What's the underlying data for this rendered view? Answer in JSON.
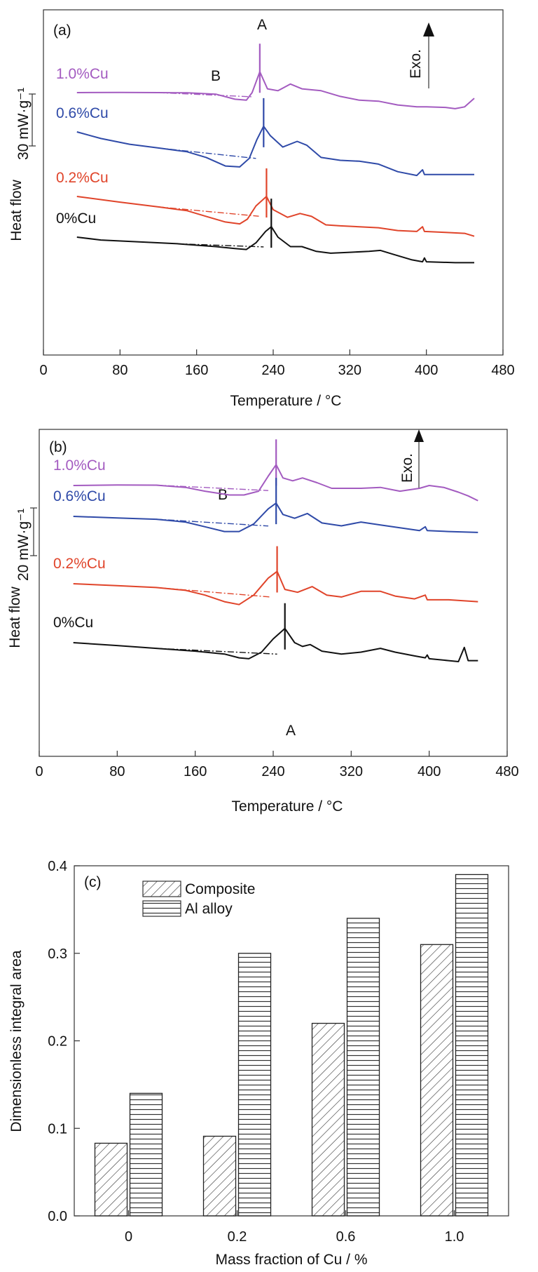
{
  "colors": {
    "cu10": "#a35bc0",
    "cu06": "#2f4aa8",
    "cu02": "#e0442a",
    "cu00": "#111111"
  },
  "chart_data": [
    {
      "panel": "(a)",
      "type": "line",
      "xlabel": "Temperature / °C",
      "ylabel": "Heat flow",
      "xlim": [
        0,
        480
      ],
      "xticks": [
        "0",
        "80",
        "160",
        "240",
        "320",
        "400",
        "480"
      ],
      "scale_bar": "30 mW·g⁻¹",
      "exo_label": "Exo.",
      "peak_label_A": "A",
      "label_B": "B",
      "y_units": "relative heat flow (curves offset)",
      "series": [
        {
          "name": "1.0%Cu",
          "color_key": "cu10",
          "peak": 226,
          "points": [
            [
              35,
              0.0
            ],
            [
              80,
              0.1
            ],
            [
              120,
              0.0
            ],
            [
              150,
              -0.1
            ],
            [
              180,
              -0.8
            ],
            [
              200,
              -3.5
            ],
            [
              212,
              -4.0
            ],
            [
              218,
              0.0
            ],
            [
              226,
              11.0
            ],
            [
              234,
              2.0
            ],
            [
              245,
              1.0
            ],
            [
              258,
              4.5
            ],
            [
              270,
              2.0
            ],
            [
              290,
              1.0
            ],
            [
              310,
              -2.0
            ],
            [
              330,
              -4.0
            ],
            [
              350,
              -4.5
            ],
            [
              370,
              -6.5
            ],
            [
              390,
              -7.5
            ],
            [
              400,
              -7.5
            ],
            [
              420,
              -7.8
            ],
            [
              430,
              -8.5
            ],
            [
              440,
              -7.5
            ],
            [
              450,
              -3.0
            ]
          ]
        },
        {
          "name": "0.6%Cu",
          "color_key": "cu06",
          "peak": 230,
          "points": [
            [
              35,
              0.0
            ],
            [
              60,
              -3.5
            ],
            [
              90,
              -6.5
            ],
            [
              120,
              -8.5
            ],
            [
              150,
              -10.5
            ],
            [
              170,
              -13.5
            ],
            [
              190,
              -18.0
            ],
            [
              205,
              -18.5
            ],
            [
              215,
              -14.0
            ],
            [
              223,
              -4.0
            ],
            [
              230,
              3.0
            ],
            [
              237,
              -2.0
            ],
            [
              250,
              -8.0
            ],
            [
              265,
              -5.0
            ],
            [
              275,
              -7.0
            ],
            [
              290,
              -13.5
            ],
            [
              310,
              -15.0
            ],
            [
              330,
              -15.5
            ],
            [
              350,
              -17.0
            ],
            [
              370,
              -21.0
            ],
            [
              390,
              -23.0
            ],
            [
              396,
              -20.0
            ],
            [
              398,
              -22.5
            ],
            [
              420,
              -22.5
            ],
            [
              450,
              -22.5
            ]
          ]
        },
        {
          "name": "0.2%Cu",
          "color_key": "cu02",
          "peak": 233,
          "points": [
            [
              35,
              0.0
            ],
            [
              80,
              -3.0
            ],
            [
              120,
              -5.5
            ],
            [
              150,
              -7.5
            ],
            [
              170,
              -10.5
            ],
            [
              190,
              -13.5
            ],
            [
              205,
              -14.5
            ],
            [
              213,
              -12.0
            ],
            [
              222,
              -5.0
            ],
            [
              233,
              0.0
            ],
            [
              240,
              -7.0
            ],
            [
              255,
              -11.0
            ],
            [
              268,
              -9.0
            ],
            [
              280,
              -10.5
            ],
            [
              295,
              -15.0
            ],
            [
              310,
              -15.5
            ],
            [
              330,
              -16.0
            ],
            [
              350,
              -16.5
            ],
            [
              370,
              -18.0
            ],
            [
              390,
              -18.5
            ],
            [
              396,
              -16.0
            ],
            [
              398,
              -18.5
            ],
            [
              420,
              -19.0
            ],
            [
              440,
              -19.5
            ],
            [
              450,
              -21.0
            ]
          ]
        },
        {
          "name": "0%Cu",
          "color_key": "cu00",
          "peak": 238,
          "points": [
            [
              35,
              0.0
            ],
            [
              60,
              -1.5
            ],
            [
              100,
              -2.5
            ],
            [
              140,
              -3.5
            ],
            [
              180,
              -5.0
            ],
            [
              200,
              -6.0
            ],
            [
              212,
              -6.5
            ],
            [
              222,
              -3.0
            ],
            [
              232,
              3.0
            ],
            [
              238,
              5.5
            ],
            [
              245,
              0.0
            ],
            [
              258,
              -5.0
            ],
            [
              270,
              -5.0
            ],
            [
              285,
              -7.5
            ],
            [
              300,
              -8.5
            ],
            [
              320,
              -8.0
            ],
            [
              340,
              -7.5
            ],
            [
              352,
              -7.0
            ],
            [
              365,
              -9.0
            ],
            [
              385,
              -12.0
            ],
            [
              396,
              -13.0
            ],
            [
              398,
              -11.0
            ],
            [
              400,
              -13.0
            ],
            [
              430,
              -13.5
            ],
            [
              450,
              -13.5
            ]
          ]
        }
      ]
    },
    {
      "panel": "(b)",
      "type": "line",
      "xlabel": "Temperature / °C",
      "ylabel": "Heat flow",
      "xlim": [
        0,
        480
      ],
      "xticks": [
        "0",
        "80",
        "160",
        "240",
        "320",
        "400",
        "480"
      ],
      "scale_bar": "20 mW·g⁻¹",
      "exo_label": "Exo.",
      "peak_label_A": "A",
      "label_B": "B",
      "y_units": "relative heat flow (curves offset)",
      "series": [
        {
          "name": "1.0%Cu",
          "color_key": "cu10",
          "peak": 243,
          "points": [
            [
              35,
              0.0
            ],
            [
              80,
              0.3
            ],
            [
              120,
              0.2
            ],
            [
              150,
              -1.0
            ],
            [
              170,
              -3.0
            ],
            [
              195,
              -5.0
            ],
            [
              210,
              -5.0
            ],
            [
              225,
              -3.0
            ],
            [
              235,
              5.0
            ],
            [
              243,
              11.0
            ],
            [
              250,
              4.0
            ],
            [
              260,
              2.5
            ],
            [
              270,
              4.0
            ],
            [
              285,
              1.5
            ],
            [
              300,
              -1.5
            ],
            [
              330,
              -1.5
            ],
            [
              350,
              -1.0
            ],
            [
              370,
              -3.0
            ],
            [
              390,
              -1.5
            ],
            [
              400,
              0.0
            ],
            [
              415,
              -1.0
            ],
            [
              430,
              -3.5
            ],
            [
              440,
              -5.5
            ],
            [
              450,
              -8.0
            ]
          ]
        },
        {
          "name": "0.6%Cu",
          "color_key": "cu06",
          "peak": 243,
          "points": [
            [
              35,
              0.0
            ],
            [
              80,
              -0.8
            ],
            [
              120,
              -1.5
            ],
            [
              150,
              -3.0
            ],
            [
              170,
              -5.5
            ],
            [
              190,
              -8.0
            ],
            [
              205,
              -8.0
            ],
            [
              220,
              -4.0
            ],
            [
              235,
              4.0
            ],
            [
              243,
              7.0
            ],
            [
              250,
              1.0
            ],
            [
              262,
              -1.0
            ],
            [
              275,
              1.5
            ],
            [
              290,
              -3.5
            ],
            [
              310,
              -5.0
            ],
            [
              330,
              -3.0
            ],
            [
              350,
              -4.5
            ],
            [
              370,
              -6.0
            ],
            [
              390,
              -7.5
            ],
            [
              396,
              -5.5
            ],
            [
              398,
              -7.5
            ],
            [
              420,
              -8.0
            ],
            [
              450,
              -8.5
            ]
          ]
        },
        {
          "name": "0.2%Cu",
          "color_key": "cu02",
          "peak": 244,
          "points": [
            [
              35,
              0.0
            ],
            [
              80,
              -1.0
            ],
            [
              120,
              -2.0
            ],
            [
              150,
              -3.5
            ],
            [
              170,
              -6.0
            ],
            [
              190,
              -9.5
            ],
            [
              205,
              -11.0
            ],
            [
              220,
              -6.0
            ],
            [
              235,
              3.0
            ],
            [
              244,
              6.5
            ],
            [
              252,
              -3.0
            ],
            [
              265,
              -4.5
            ],
            [
              280,
              -1.5
            ],
            [
              295,
              -6.0
            ],
            [
              310,
              -7.0
            ],
            [
              330,
              -4.0
            ],
            [
              350,
              -4.0
            ],
            [
              365,
              -6.5
            ],
            [
              385,
              -8.0
            ],
            [
              396,
              -6.0
            ],
            [
              398,
              -8.5
            ],
            [
              420,
              -8.5
            ],
            [
              450,
              -9.5
            ]
          ]
        },
        {
          "name": "0%Cu",
          "color_key": "cu00",
          "peak": 252,
          "points": [
            [
              35,
              0.0
            ],
            [
              80,
              -1.5
            ],
            [
              120,
              -3.0
            ],
            [
              160,
              -4.5
            ],
            [
              190,
              -6.0
            ],
            [
              205,
              -8.0
            ],
            [
              215,
              -8.5
            ],
            [
              228,
              -5.0
            ],
            [
              240,
              2.0
            ],
            [
              252,
              7.5
            ],
            [
              262,
              0.0
            ],
            [
              270,
              -2.0
            ],
            [
              278,
              -1.0
            ],
            [
              290,
              -4.5
            ],
            [
              310,
              -6.0
            ],
            [
              330,
              -5.0
            ],
            [
              350,
              -3.0
            ],
            [
              365,
              -5.0
            ],
            [
              385,
              -7.0
            ],
            [
              396,
              -8.0
            ],
            [
              398,
              -6.5
            ],
            [
              400,
              -8.5
            ],
            [
              420,
              -9.5
            ],
            [
              430,
              -10.0
            ],
            [
              436,
              -2.5
            ],
            [
              440,
              -9.5
            ],
            [
              450,
              -9.5
            ]
          ]
        }
      ]
    },
    {
      "panel": "(c)",
      "type": "bar",
      "xlabel": "Mass fraction of Cu / %",
      "ylabel": "Dimensionless integral area",
      "categories": [
        "0",
        "0.2",
        "0.6",
        "1.0"
      ],
      "ylim": [
        0,
        0.4
      ],
      "yticks": [
        "0.0",
        "0.1",
        "0.2",
        "0.3",
        "0.4"
      ],
      "legend_position": "top-left",
      "series": [
        {
          "name": "Composite",
          "pattern": "diagonal",
          "values": [
            0.083,
            0.091,
            0.22,
            0.31
          ]
        },
        {
          "name": "Al alloy",
          "pattern": "horizontal",
          "values": [
            0.14,
            0.3,
            0.34,
            0.39
          ]
        }
      ]
    }
  ]
}
